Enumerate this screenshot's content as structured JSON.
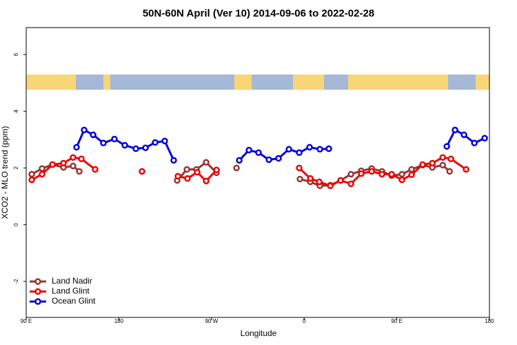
{
  "chart_data": {
    "type": "line",
    "title": "50N-60N April (Ver 10)   2014-09-06 to 2022-02-28",
    "x_label": "Longitude",
    "y_label": "XCO2 - MLO trend (ppm)",
    "xlim": [
      90,
      540
    ],
    "ylim": [
      -3.27,
      6.95
    ],
    "xticks": [
      {
        "value": 90,
        "label": "90 E"
      },
      180,
      {
        "value": 270,
        "label": "90 W"
      },
      {
        "value": 360,
        "label": "0"
      },
      {
        "value": 450,
        "label": "90 E"
      },
      {
        "value": 540,
        "label": "180"
      }
    ],
    "yticks": [
      -2,
      0,
      2,
      4,
      6
    ],
    "legend": "bottom-left",
    "series": [
      {
        "name": "Land Nadir",
        "color": "#993333",
        "x": [
          95.4,
          105.4,
          115.5,
          126.2,
          135.5,
          141.6,
          null,
          236.7,
          246.1,
          255.4,
          264.8,
          274.9,
          null,
          294.3,
          null,
          355.9,
          366,
          375.3,
          385.4,
          395.4,
          405.5,
          415.5,
          425.6,
          435.6,
          445,
          455,
          464.4,
          475.1,
          484.5,
          494.6,
          501.3
        ],
        "values": [
          1.78,
          1.98,
          2.12,
          2.02,
          2.07,
          1.88,
          null,
          1.56,
          1.95,
          1.95,
          2.2,
          1.83,
          null,
          2.0,
          null,
          1.61,
          1.51,
          1.37,
          1.39,
          1.56,
          1.78,
          1.9,
          1.98,
          1.88,
          1.73,
          1.78,
          1.95,
          2.1,
          2.02,
          2.1,
          1.88
        ]
      },
      {
        "name": "Land Glint",
        "color": "#ee0000",
        "x": [
          95.4,
          105.4,
          115.5,
          126.2,
          135.5,
          143.6,
          157,
          null,
          202.5,
          null,
          237.4,
          246.7,
          256.1,
          264.8,
          274.9,
          null,
          355.2,
          366,
          374.7,
          385.4,
          395.4,
          405.5,
          415.5,
          425.6,
          435.6,
          445,
          455,
          464.4,
          475.1,
          484.5,
          494.6,
          502.6,
          517.3
        ],
        "values": [
          1.58,
          1.78,
          2.12,
          2.17,
          2.37,
          2.32,
          1.95,
          null,
          1.88,
          null,
          1.71,
          1.63,
          1.85,
          1.54,
          1.93,
          null,
          2.0,
          1.63,
          1.51,
          1.37,
          1.56,
          1.44,
          1.8,
          1.88,
          1.78,
          1.78,
          1.58,
          1.76,
          2.12,
          2.17,
          2.37,
          2.32,
          1.95
        ]
      },
      {
        "name": "Ocean Glint",
        "color": "#0000dd",
        "x": [
          138.9,
          146.3,
          155,
          165,
          175.7,
          185.8,
          196.5,
          205.9,
          215.3,
          224.6,
          233.3,
          null,
          297,
          306.4,
          315.7,
          325.8,
          335.1,
          345.2,
          355.2,
          365.3,
          375.3,
          384,
          null,
          498.6,
          506.6,
          515.3,
          525.4,
          535.4
        ],
        "values": [
          2.73,
          3.34,
          3.17,
          2.88,
          3.02,
          2.8,
          2.68,
          2.71,
          2.9,
          2.95,
          2.27,
          null,
          2.27,
          2.63,
          2.54,
          2.29,
          2.34,
          2.66,
          2.54,
          2.73,
          2.66,
          2.68,
          null,
          2.76,
          3.34,
          3.17,
          2.88,
          3.05
        ]
      }
    ]
  }
}
